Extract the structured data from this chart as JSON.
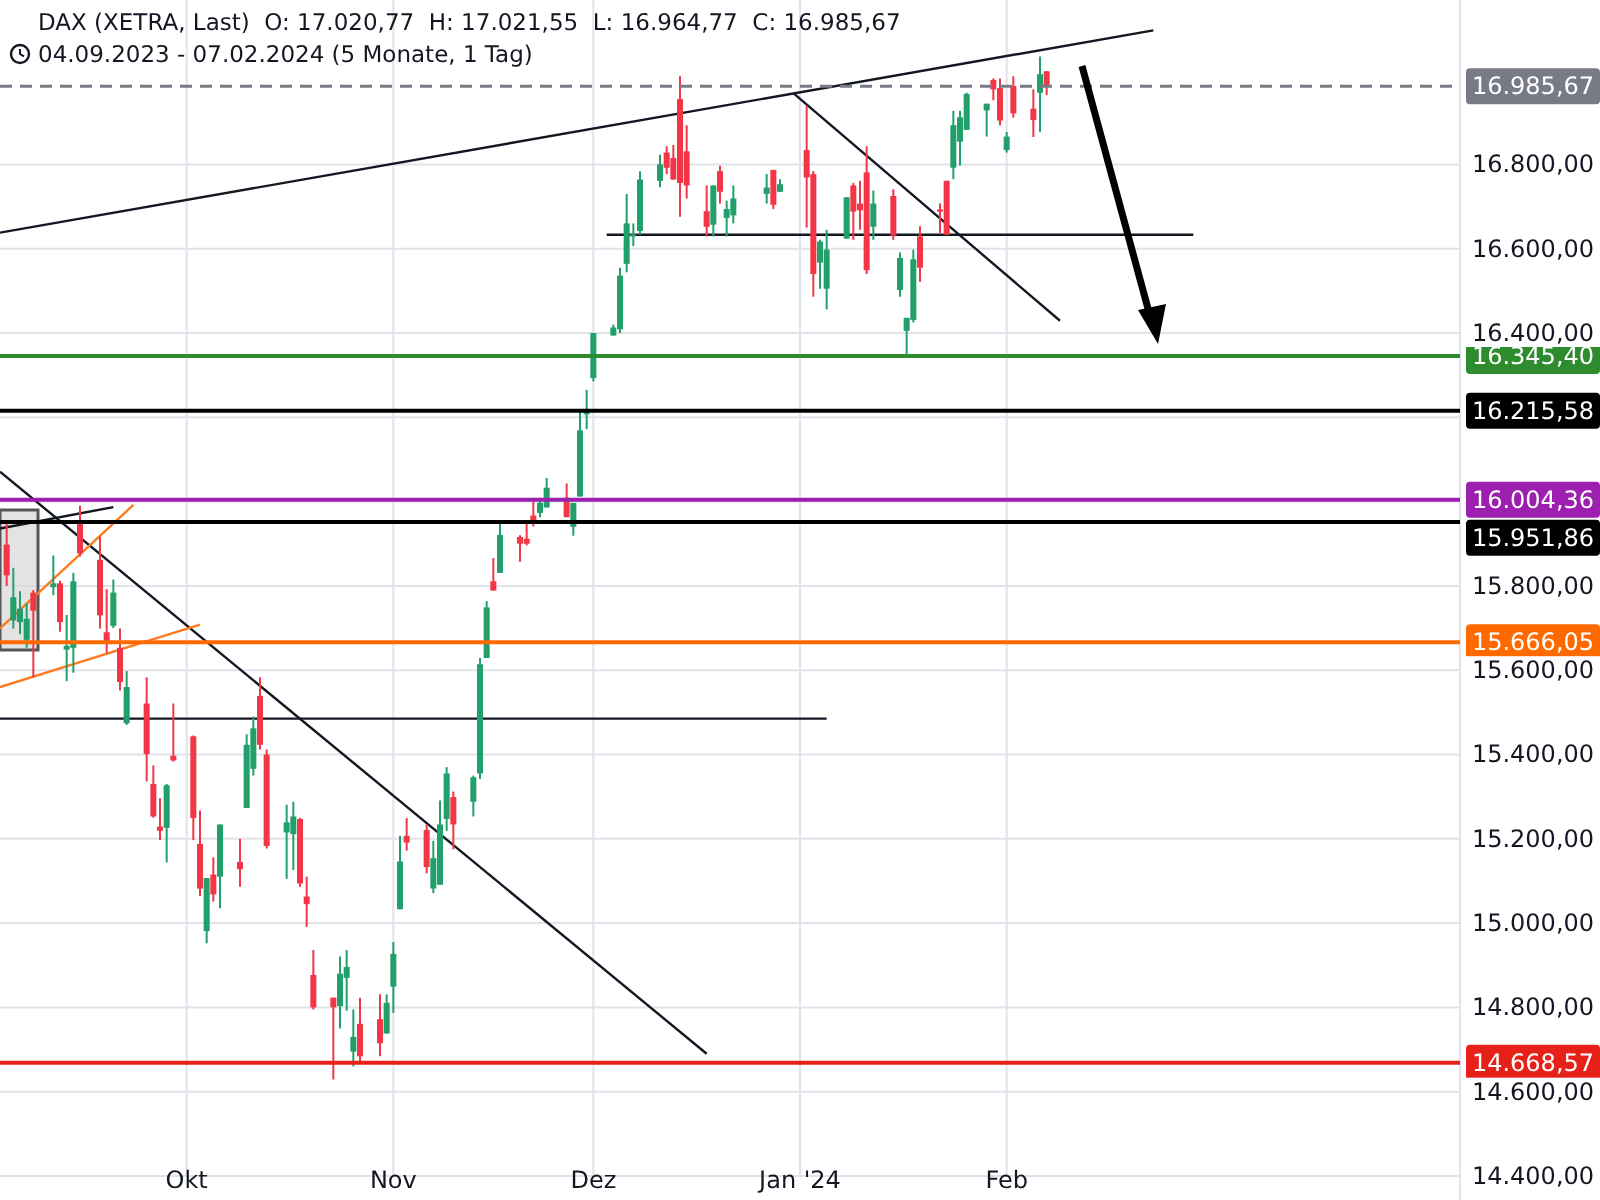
{
  "chart_data": {
    "type": "candlestick",
    "title": "DAX (XETRA, Last)  O: 17.020,77  H: 17.021,55  L: 16.964,77  C: 16.985,67",
    "subtitle": "04.09.2023 - 07.02.2024 (5 Monate, 1 Tag)",
    "x": [
      "2023-09-04",
      "2023-09-05",
      "2023-09-06",
      "2023-09-07",
      "2023-09-08",
      "2023-09-11",
      "2023-09-12",
      "2023-09-13",
      "2023-09-14",
      "2023-09-15",
      "2023-09-18",
      "2023-09-19",
      "2023-09-20",
      "2023-09-21",
      "2023-09-22",
      "2023-09-25",
      "2023-09-26",
      "2023-09-27",
      "2023-09-28",
      "2023-09-29",
      "2023-10-02",
      "2023-10-03",
      "2023-10-04",
      "2023-10-05",
      "2023-10-06",
      "2023-10-09",
      "2023-10-10",
      "2023-10-11",
      "2023-10-12",
      "2023-10-13",
      "2023-10-16",
      "2023-10-17",
      "2023-10-18",
      "2023-10-19",
      "2023-10-20",
      "2023-10-23",
      "2023-10-24",
      "2023-10-25",
      "2023-10-26",
      "2023-10-27",
      "2023-10-30",
      "2023-10-31",
      "2023-11-01",
      "2023-11-02",
      "2023-11-03",
      "2023-11-06",
      "2023-11-07",
      "2023-11-08",
      "2023-11-09",
      "2023-11-10",
      "2023-11-13",
      "2023-11-14",
      "2023-11-15",
      "2023-11-16",
      "2023-11-17",
      "2023-11-20",
      "2023-11-21",
      "2023-11-22",
      "2023-11-23",
      "2023-11-24",
      "2023-11-27",
      "2023-11-28",
      "2023-11-29",
      "2023-11-30",
      "2023-12-01",
      "2023-12-04",
      "2023-12-05",
      "2023-12-06",
      "2023-12-07",
      "2023-12-08",
      "2023-12-11",
      "2023-12-12",
      "2023-12-13",
      "2023-12-14",
      "2023-12-15",
      "2023-12-18",
      "2023-12-19",
      "2023-12-20",
      "2023-12-21",
      "2023-12-22",
      "2023-12-27",
      "2023-12-28",
      "2023-12-29",
      "2024-01-02",
      "2024-01-03",
      "2024-01-04",
      "2024-01-05",
      "2024-01-08",
      "2024-01-09",
      "2024-01-10",
      "2024-01-11",
      "2024-01-12",
      "2024-01-15",
      "2024-01-16",
      "2024-01-17",
      "2024-01-18",
      "2024-01-19",
      "2024-01-22",
      "2024-01-23",
      "2024-01-24",
      "2024-01-25",
      "2024-01-26",
      "2024-01-29",
      "2024-01-30",
      "2024-01-31",
      "2024-02-01",
      "2024-02-02",
      "2024-02-05",
      "2024-02-06",
      "2024-02-07"
    ],
    "ohlc": [
      [
        15898,
        15955,
        15800,
        15825
      ],
      [
        15718,
        15843,
        15699,
        15773
      ],
      [
        15714,
        15787,
        15685,
        15746
      ],
      [
        15672,
        15758,
        15653,
        15722
      ],
      [
        15784,
        15790,
        15583,
        15741
      ],
      [
        15797,
        15872,
        15778,
        15806
      ],
      [
        15806,
        15812,
        15691,
        15714
      ],
      [
        15649,
        15731,
        15574,
        15658
      ],
      [
        15653,
        15831,
        15594,
        15811
      ],
      [
        15947,
        15990,
        15870,
        15877
      ],
      [
        15862,
        15916,
        15699,
        15730
      ],
      [
        15690,
        15792,
        15640,
        15668
      ],
      [
        15705,
        15815,
        15700,
        15784
      ],
      [
        15653,
        15699,
        15552,
        15572
      ],
      [
        15474,
        15598,
        15470,
        15560
      ],
      [
        15521,
        15583,
        15336,
        15401
      ],
      [
        15330,
        15374,
        15250,
        15253
      ],
      [
        15229,
        15296,
        15197,
        15219
      ],
      [
        15226,
        15330,
        15144,
        15327
      ],
      [
        15397,
        15521,
        15383,
        15386
      ],
      [
        15443,
        15445,
        15197,
        15249
      ],
      [
        15188,
        15267,
        15064,
        15082
      ],
      [
        14981,
        15107,
        14952,
        15107
      ],
      [
        15115,
        15156,
        15051,
        15068
      ],
      [
        15110,
        15234,
        15035,
        15234
      ],
      [
        15145,
        15200,
        15086,
        15128
      ],
      [
        15273,
        15448,
        15273,
        15423
      ],
      [
        15366,
        15490,
        15350,
        15462
      ],
      [
        15539,
        15583,
        15412,
        15423
      ],
      [
        15400,
        15412,
        15177,
        15183
      ],
      [
        15215,
        15281,
        15105,
        15239
      ],
      [
        15211,
        15288,
        15126,
        15253
      ],
      [
        15247,
        15250,
        15086,
        15094
      ],
      [
        15063,
        15110,
        14991,
        15045
      ],
      [
        14877,
        14936,
        14795,
        14800
      ],
      [
        14823,
        14823,
        14629,
        14800
      ],
      [
        14803,
        14921,
        14750,
        14880
      ],
      [
        14870,
        14936,
        14792,
        14896
      ],
      [
        14695,
        14795,
        14660,
        14730
      ],
      [
        14761,
        14823,
        14668,
        14684
      ],
      [
        14772,
        14831,
        14684,
        14715
      ],
      [
        14738,
        14831,
        14738,
        14811
      ],
      [
        14849,
        14955,
        14787,
        14927
      ],
      [
        15033,
        15207,
        15033,
        15146
      ],
      [
        15207,
        15249,
        15172,
        15191
      ],
      [
        15221,
        15234,
        15118,
        15133
      ],
      [
        15082,
        15195,
        15071,
        15154
      ],
      [
        15091,
        15291,
        15091,
        15234
      ],
      [
        15247,
        15370,
        15219,
        15355
      ],
      [
        15299,
        15312,
        15175,
        15234
      ],
      [
        15288,
        15350,
        15253,
        15346
      ],
      [
        15355,
        15629,
        15342,
        15614
      ],
      [
        15629,
        15764,
        15629,
        15749
      ],
      [
        15811,
        15866,
        15789,
        15789
      ],
      [
        15831,
        15955,
        15831,
        15921
      ],
      [
        15916,
        15920,
        15857,
        15900
      ],
      [
        15912,
        15955,
        15896,
        15900
      ],
      [
        15967,
        16001,
        15941,
        15955
      ],
      [
        15973,
        16009,
        15963,
        15997
      ],
      [
        15986,
        16056,
        15986,
        16033
      ],
      [
        16009,
        16043,
        15963,
        15963
      ],
      [
        15940,
        15997,
        15919,
        15997
      ],
      [
        16012,
        16219,
        16012,
        16169
      ],
      [
        16207,
        16265,
        16172,
        16215
      ],
      [
        16293,
        16400,
        16285,
        16400
      ],
      [
        16394,
        16420,
        16394,
        16413
      ],
      [
        16409,
        16555,
        16400,
        16536
      ],
      [
        16564,
        16730,
        16544,
        16660
      ],
      [
        16629,
        16660,
        16606,
        16634
      ],
      [
        16642,
        16784,
        16633,
        16764
      ],
      [
        16761,
        16823,
        16746,
        16800
      ],
      [
        16828,
        16843,
        16777,
        16792
      ],
      [
        16815,
        16846,
        16764,
        16764
      ],
      [
        16955,
        17009,
        16676,
        16756
      ],
      [
        16831,
        16893,
        16719,
        16750
      ],
      [
        16689,
        16750,
        16629,
        16652
      ],
      [
        16657,
        16750,
        16629,
        16750
      ],
      [
        16784,
        16797,
        16707,
        16735
      ],
      [
        16673,
        16714,
        16629,
        16694
      ],
      [
        16679,
        16750,
        16660,
        16719
      ],
      [
        16730,
        16777,
        16707,
        16745
      ],
      [
        16787,
        16787,
        16694,
        16704
      ],
      [
        16735,
        16765,
        16735,
        16753
      ],
      [
        16834,
        16938,
        16650,
        16769
      ],
      [
        16777,
        16784,
        16486,
        16540
      ],
      [
        16567,
        16621,
        16505,
        16617
      ],
      [
        16505,
        16645,
        16456,
        16598
      ],
      [
        16624,
        16722,
        16624,
        16722
      ],
      [
        16750,
        16756,
        16621,
        16688
      ],
      [
        16707,
        16761,
        16645,
        16691
      ],
      [
        16781,
        16843,
        16540,
        16549
      ],
      [
        16652,
        16738,
        16621,
        16707
      ],
      [
        16725,
        16741,
        16621,
        16631
      ],
      [
        16502,
        16591,
        16486,
        16578
      ],
      [
        16405,
        16436,
        16343,
        16436
      ],
      [
        16431,
        16598,
        16425,
        16575
      ],
      [
        16629,
        16653,
        16521,
        16555
      ],
      [
        16693,
        16707,
        16637,
        16688
      ],
      [
        16761,
        16761,
        16633,
        16633
      ],
      [
        16792,
        16927,
        16765,
        16893
      ],
      [
        16854,
        16927,
        16797,
        16912
      ],
      [
        16882,
        16970,
        16882,
        16967
      ],
      [
        16928,
        16944,
        16866,
        16944
      ],
      [
        17000,
        17004,
        16952,
        16978
      ],
      [
        16981,
        17004,
        16893,
        16904
      ],
      [
        16834,
        16877,
        16828,
        16866
      ],
      [
        16986,
        17009,
        16911,
        16921
      ],
      [
        16932,
        16978,
        16865,
        16905
      ],
      [
        16970,
        17056,
        16877,
        17014
      ],
      [
        17020.77,
        17021.55,
        16964.77,
        16985.67
      ]
    ],
    "series": [
      {
        "type": "line",
        "color": "#131722",
        "x": [
          "2023-09-03",
          "2024-02-23"
        ],
        "values": [
          16638,
          17118
        ]
      },
      {
        "type": "line",
        "color": "#131722",
        "x": [
          "2023-09-03",
          "2023-12-18"
        ],
        "values": [
          16071,
          14690
        ]
      },
      {
        "type": "line",
        "color": "#131722",
        "x": [
          "2023-12-31",
          "2024-02-09"
        ],
        "values": [
          16969,
          16429
        ]
      },
      {
        "type": "line",
        "color": "#131722",
        "x": [
          "2023-09-03",
          "2024-01-05"
        ],
        "values": [
          15485,
          15485
        ]
      },
      {
        "type": "line",
        "color": "#131722",
        "x": [
          "2023-12-03",
          "2024-02-29"
        ],
        "values": [
          16633,
          16633
        ]
      },
      {
        "type": "line",
        "color": "#ff7a1f",
        "x": [
          "2023-09-03",
          "2023-10-03"
        ],
        "values": [
          15560,
          15708
        ]
      },
      {
        "type": "line",
        "color": "#ff7a1f",
        "x": [
          "2023-09-03",
          "2023-09-23"
        ],
        "values": [
          15699,
          15992
        ]
      },
      {
        "type": "line",
        "color": "#131722",
        "x": [
          "2023-09-03",
          "2023-09-20"
        ],
        "values": [
          15936,
          15987
        ]
      }
    ],
    "ref_lines": [
      {
        "axis": "y",
        "value": 16985.67,
        "label": "16.985,67",
        "color": "#787b86",
        "line_style": "dashed"
      },
      {
        "axis": "y",
        "value": 16345.4,
        "label": "16.345,40",
        "color": "#2e8b2e"
      },
      {
        "axis": "y",
        "value": 16215.58,
        "label": "16.215,58",
        "color": "#000000"
      },
      {
        "axis": "y",
        "value": 16004.36,
        "label": "16.004,36",
        "color": "#9c1fb0"
      },
      {
        "axis": "y",
        "value": 15951.86,
        "label": "15.951,86",
        "color": "#000000"
      },
      {
        "axis": "y",
        "value": 15666.05,
        "label": "15.666,05",
        "color": "#ff6a00"
      },
      {
        "axis": "y",
        "value": 14668.57,
        "label": "14.668,57",
        "color": "#e8201a"
      }
    ],
    "xlim": [
      "2023-09-03",
      "2024-04-09"
    ],
    "xticks": [
      {
        "value": "2023-10-01",
        "label": "Okt"
      },
      {
        "value": "2023-11-01",
        "label": "Nov"
      },
      {
        "value": "2023-12-01",
        "label": "Dez"
      },
      {
        "value": "2024-01-01",
        "label": "Jan '24"
      },
      {
        "value": "2024-02-01",
        "label": "Feb"
      }
    ],
    "ylim": [
      14400,
      17190
    ],
    "yticks": [
      {
        "value": 14400,
        "label": "14.400,00"
      },
      {
        "value": 14600,
        "label": "14.600,00"
      },
      {
        "value": 14800,
        "label": "14.800,00"
      },
      {
        "value": 15000,
        "label": "15.000,00"
      },
      {
        "value": 15200,
        "label": "15.200,00"
      },
      {
        "value": 15400,
        "label": "15.400,00"
      },
      {
        "value": 15600,
        "label": "15.600,00"
      },
      {
        "value": 15800,
        "label": "15.800,00"
      },
      {
        "value": 16000,
        "label": null
      },
      {
        "value": 16200,
        "label": null
      },
      {
        "value": 16400,
        "label": "16.400,00"
      },
      {
        "value": 16600,
        "label": "16.600,00"
      },
      {
        "value": 16800,
        "label": "16.800,00"
      }
    ],
    "grid": true
  }
}
